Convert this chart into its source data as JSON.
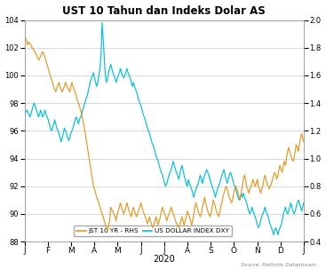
{
  "title": "UST 10 Tahun dan Indeks Dolar AS",
  "xlabel": "2020",
  "left_ylim": [
    88.0,
    104.0
  ],
  "right_ylim": [
    0.4,
    2.0
  ],
  "left_yticks": [
    88.0,
    90.0,
    92.0,
    94.0,
    96.0,
    98.0,
    100.0,
    102.0,
    104.0
  ],
  "right_yticks": [
    0.4,
    0.6,
    0.8,
    1.0,
    1.2,
    1.4,
    1.6,
    1.8,
    2.0
  ],
  "xtick_labels": [
    "J",
    "F",
    "M",
    "A",
    "M",
    "J",
    "J",
    "A",
    "S",
    "O",
    "N",
    "D",
    "J"
  ],
  "source_text": "Source: Refinitiv Datastream",
  "legend_labels": [
    "JST 10 YR - RHS",
    "US DOLLAR INDEX DXY"
  ],
  "line_ust_color": "#E8971E",
  "line_dxy_color": "#00BFDF",
  "background_color": "#FFFFFF",
  "grid_color": "#CCCCCC",
  "ust_data": [
    1.88,
    1.87,
    1.85,
    1.82,
    1.84,
    1.83,
    1.82,
    1.8,
    1.79,
    1.78,
    1.76,
    1.75,
    1.73,
    1.71,
    1.72,
    1.74,
    1.76,
    1.77,
    1.75,
    1.73,
    1.7,
    1.68,
    1.65,
    1.62,
    1.6,
    1.57,
    1.55,
    1.52,
    1.5,
    1.48,
    1.51,
    1.53,
    1.55,
    1.52,
    1.5,
    1.48,
    1.5,
    1.52,
    1.55,
    1.53,
    1.51,
    1.5,
    1.48,
    1.52,
    1.55,
    1.52,
    1.5,
    1.48,
    1.45,
    1.42,
    1.4,
    1.38,
    1.35,
    1.32,
    1.28,
    1.25,
    1.2,
    1.15,
    1.1,
    1.05,
    1.0,
    0.95,
    0.9,
    0.85,
    0.8,
    0.78,
    0.75,
    0.72,
    0.7,
    0.68,
    0.65,
    0.62,
    0.6,
    0.58,
    0.55,
    0.52,
    0.5,
    0.48,
    0.52,
    0.55,
    0.65,
    0.63,
    0.62,
    0.6,
    0.58,
    0.55,
    0.6,
    0.62,
    0.65,
    0.68,
    0.65,
    0.62,
    0.6,
    0.62,
    0.65,
    0.68,
    0.65,
    0.62,
    0.6,
    0.58,
    0.62,
    0.65,
    0.62,
    0.6,
    0.58,
    0.6,
    0.63,
    0.65,
    0.68,
    0.65,
    0.62,
    0.6,
    0.58,
    0.56,
    0.53,
    0.55,
    0.58,
    0.55,
    0.52,
    0.5,
    0.52,
    0.55,
    0.58,
    0.55,
    0.52,
    0.55,
    0.58,
    0.62,
    0.65,
    0.62,
    0.6,
    0.58,
    0.55,
    0.58,
    0.6,
    0.62,
    0.65,
    0.62,
    0.6,
    0.58,
    0.55,
    0.53,
    0.52,
    0.5,
    0.52,
    0.55,
    0.58,
    0.55,
    0.52,
    0.55,
    0.58,
    0.62,
    0.6,
    0.58,
    0.55,
    0.52,
    0.55,
    0.6,
    0.65,
    0.68,
    0.65,
    0.62,
    0.6,
    0.58,
    0.6,
    0.65,
    0.68,
    0.72,
    0.68,
    0.65,
    0.62,
    0.6,
    0.58,
    0.6,
    0.65,
    0.7,
    0.68,
    0.65,
    0.62,
    0.6,
    0.58,
    0.6,
    0.65,
    0.68,
    0.72,
    0.75,
    0.78,
    0.8,
    0.78,
    0.75,
    0.72,
    0.7,
    0.68,
    0.7,
    0.75,
    0.78,
    0.8,
    0.78,
    0.75,
    0.72,
    0.7,
    0.75,
    0.8,
    0.85,
    0.88,
    0.85,
    0.8,
    0.78,
    0.75,
    0.78,
    0.8,
    0.82,
    0.85,
    0.82,
    0.8,
    0.82,
    0.85,
    0.8,
    0.78,
    0.75,
    0.78,
    0.8,
    0.85,
    0.88,
    0.85,
    0.82,
    0.8,
    0.78,
    0.8,
    0.82,
    0.85,
    0.88,
    0.9,
    0.88,
    0.85,
    0.88,
    0.92,
    0.95,
    0.92,
    0.9,
    0.95,
    0.98,
    0.95,
    1.0,
    1.05,
    1.08,
    1.05,
    1.02,
    1.0,
    0.98,
    1.0,
    1.05,
    1.1,
    1.08,
    1.05,
    1.1,
    1.15,
    1.18,
    1.15,
    1.12
  ],
  "dxy_data": [
    97.0,
    97.3,
    97.5,
    97.4,
    97.2,
    97.0,
    97.2,
    97.5,
    97.8,
    98.0,
    97.8,
    97.5,
    97.3,
    97.0,
    97.2,
    97.5,
    97.2,
    97.0,
    97.2,
    97.5,
    97.2,
    97.0,
    96.8,
    96.5,
    96.2,
    96.0,
    96.2,
    96.5,
    96.8,
    96.5,
    96.2,
    96.0,
    95.8,
    95.5,
    95.2,
    95.5,
    95.8,
    96.2,
    96.0,
    95.8,
    95.5,
    95.3,
    95.5,
    95.8,
    96.0,
    96.2,
    96.5,
    96.8,
    97.0,
    96.8,
    96.5,
    96.8,
    97.0,
    97.2,
    97.5,
    97.8,
    98.0,
    98.3,
    98.5,
    98.8,
    99.2,
    99.5,
    99.8,
    100.0,
    100.2,
    99.8,
    99.5,
    99.2,
    99.5,
    100.0,
    100.5,
    101.5,
    103.8,
    102.5,
    101.2,
    100.0,
    99.5,
    99.8,
    100.2,
    100.5,
    100.8,
    100.5,
    100.2,
    100.0,
    99.8,
    99.5,
    99.8,
    100.0,
    100.2,
    100.5,
    100.2,
    100.0,
    99.8,
    100.0,
    100.2,
    100.5,
    100.2,
    100.0,
    99.8,
    99.5,
    99.2,
    99.5,
    99.2,
    99.0,
    98.8,
    98.5,
    98.2,
    98.0,
    97.8,
    97.5,
    97.2,
    97.0,
    96.8,
    96.5,
    96.2,
    96.0,
    95.8,
    95.5,
    95.2,
    95.0,
    94.8,
    94.5,
    94.2,
    94.0,
    93.8,
    93.5,
    93.2,
    93.0,
    92.8,
    92.5,
    92.2,
    92.0,
    92.2,
    92.5,
    92.8,
    93.0,
    93.2,
    93.5,
    93.8,
    93.5,
    93.2,
    93.0,
    92.8,
    92.5,
    92.8,
    93.2,
    93.5,
    93.2,
    92.8,
    92.5,
    92.2,
    92.0,
    92.5,
    92.2,
    92.0,
    91.8,
    91.5,
    91.2,
    91.5,
    91.8,
    92.0,
    92.2,
    92.5,
    92.8,
    92.5,
    92.2,
    92.5,
    92.8,
    93.0,
    93.2,
    93.0,
    92.8,
    92.5,
    92.2,
    92.0,
    91.8,
    91.5,
    91.2,
    91.5,
    91.8,
    92.0,
    92.2,
    92.5,
    92.8,
    93.0,
    93.2,
    92.8,
    92.5,
    92.2,
    92.5,
    92.8,
    93.0,
    92.8,
    92.5,
    92.2,
    92.0,
    91.8,
    91.5,
    91.2,
    91.0,
    91.2,
    91.5,
    91.2,
    91.5,
    91.2,
    91.0,
    90.8,
    90.5,
    90.2,
    90.0,
    90.2,
    90.5,
    90.2,
    90.0,
    89.8,
    89.5,
    89.2,
    89.0,
    89.2,
    89.5,
    89.8,
    90.0,
    90.2,
    90.5,
    90.2,
    90.0,
    89.8,
    89.5,
    89.2,
    89.0,
    88.8,
    88.5,
    88.8,
    89.0,
    88.8,
    88.5,
    88.8,
    89.0,
    89.2,
    89.5,
    90.0,
    90.2,
    90.5,
    90.2,
    90.0,
    90.2,
    90.5,
    90.8,
    90.5,
    90.2,
    90.0,
    90.2,
    90.5,
    90.8,
    91.0,
    90.8,
    90.5,
    90.2,
    90.5,
    90.8
  ]
}
